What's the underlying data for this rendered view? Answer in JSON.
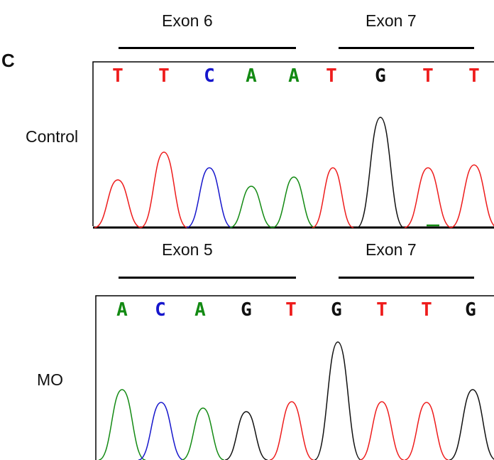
{
  "panel_label": "C",
  "colors": {
    "A": "#138a13",
    "C": "#1616cc",
    "G": "#111111",
    "T": "#ee1c1c"
  },
  "control": {
    "sample_label": "Control",
    "exon_left": "Exon 6",
    "exon_right": "Exon 7",
    "bases": [
      "T",
      "T",
      "C",
      "A",
      "A",
      "T",
      "G",
      "T",
      "T"
    ]
  },
  "mo": {
    "sample_label": "MO",
    "exon_left": "Exon 5",
    "exon_right": "Exon 7",
    "bases": [
      "A",
      "C",
      "A",
      "G",
      "T",
      "G",
      "T",
      "T",
      "G"
    ]
  }
}
